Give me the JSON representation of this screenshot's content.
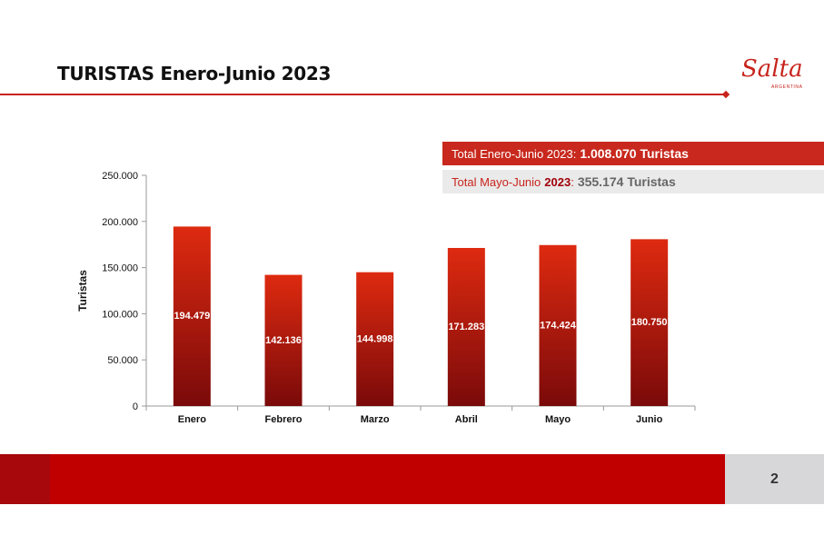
{
  "header": {
    "title": "TURISTAS Enero-Junio 2023",
    "logo_text": "Salta",
    "logo_subtext": "ARGENTINA"
  },
  "banners": {
    "total_label": "Total Enero-Junio 2023:",
    "total_value": "1.008.070 Turistas",
    "partial_label": "Total Mayo-Junio",
    "partial_year": "2023",
    "partial_colon": ":",
    "partial_value": "355.174 Turistas"
  },
  "footer": {
    "page_number": "2"
  },
  "colors": {
    "accent": "#c8241c",
    "bar_top": "#de2a10",
    "bar_bottom": "#7a0a0a",
    "footer_red": "#c00000"
  },
  "chart_data": {
    "type": "bar",
    "categories": [
      "Enero",
      "Febrero",
      "Marzo",
      "Abril",
      "Mayo",
      "Junio"
    ],
    "values": [
      194479,
      142136,
      144998,
      171283,
      174424,
      180750
    ],
    "value_labels": [
      "194.479",
      "142.136",
      "144.998",
      "171.283",
      "174.424",
      "180.750"
    ],
    "yticks": [
      "0",
      "50.000",
      "100.000",
      "150.000",
      "200.000",
      "250.000"
    ],
    "ylabel": "Turistas",
    "xlabel": "",
    "title": "",
    "ylim": [
      0,
      250000
    ],
    "grid": false
  }
}
